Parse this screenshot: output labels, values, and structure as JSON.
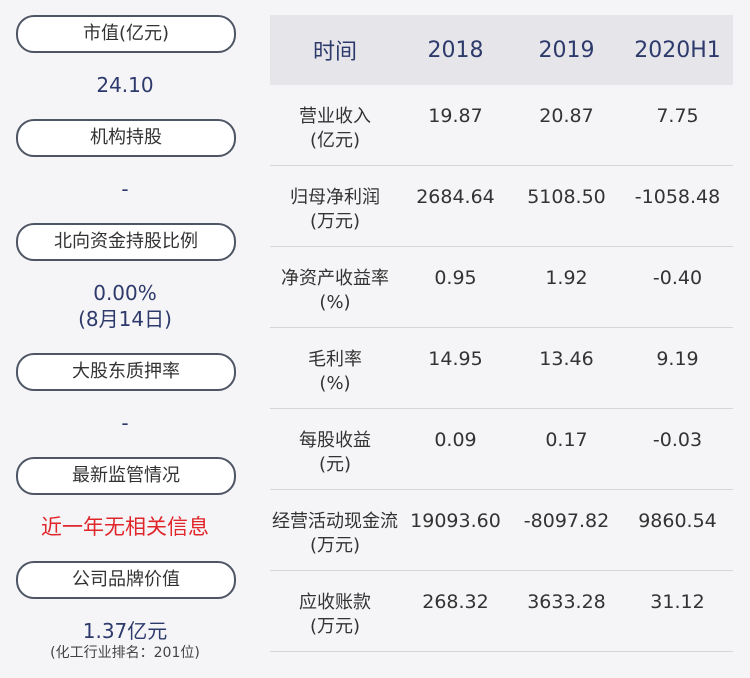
{
  "sidebar": {
    "market_cap_label": "市值(亿元)",
    "market_cap_value": "24.10",
    "institution_label": "机构持股",
    "institution_value": "-",
    "northbound_label": "北向资金持股比例",
    "northbound_value": "0.00%",
    "northbound_date": "(8月14日)",
    "pledge_label": "大股东质押率",
    "pledge_value": "-",
    "regulation_label": "最新监管情况",
    "regulation_value": "近一年无相关信息",
    "brand_label": "公司品牌价值",
    "brand_value": "1.37亿元",
    "brand_rank": "(化工行业排名：201位)"
  },
  "table": {
    "headers": [
      "时间",
      "2018",
      "2019",
      "2020H1"
    ],
    "rows": [
      {
        "name": "营业收入",
        "unit": "(亿元)",
        "values": [
          "19.87",
          "20.87",
          "7.75"
        ]
      },
      {
        "name": "归母净利润",
        "unit": "(万元)",
        "values": [
          "2684.64",
          "5108.50",
          "-1058.48"
        ]
      },
      {
        "name": "净资产收益率",
        "unit": "(%)",
        "values": [
          "0.95",
          "1.92",
          "-0.40"
        ]
      },
      {
        "name": "毛利率",
        "unit": "(%)",
        "values": [
          "14.95",
          "13.46",
          "9.19"
        ]
      },
      {
        "name": "每股收益",
        "unit": "(元)",
        "values": [
          "0.09",
          "0.17",
          "-0.03"
        ]
      },
      {
        "name": "经营活动现金流",
        "unit": "(万元)",
        "values": [
          "19093.60",
          "-8097.82",
          "9860.54"
        ]
      },
      {
        "name": "应收账款",
        "unit": "(万元)",
        "values": [
          "268.32",
          "3633.28",
          "31.12"
        ]
      }
    ]
  }
}
